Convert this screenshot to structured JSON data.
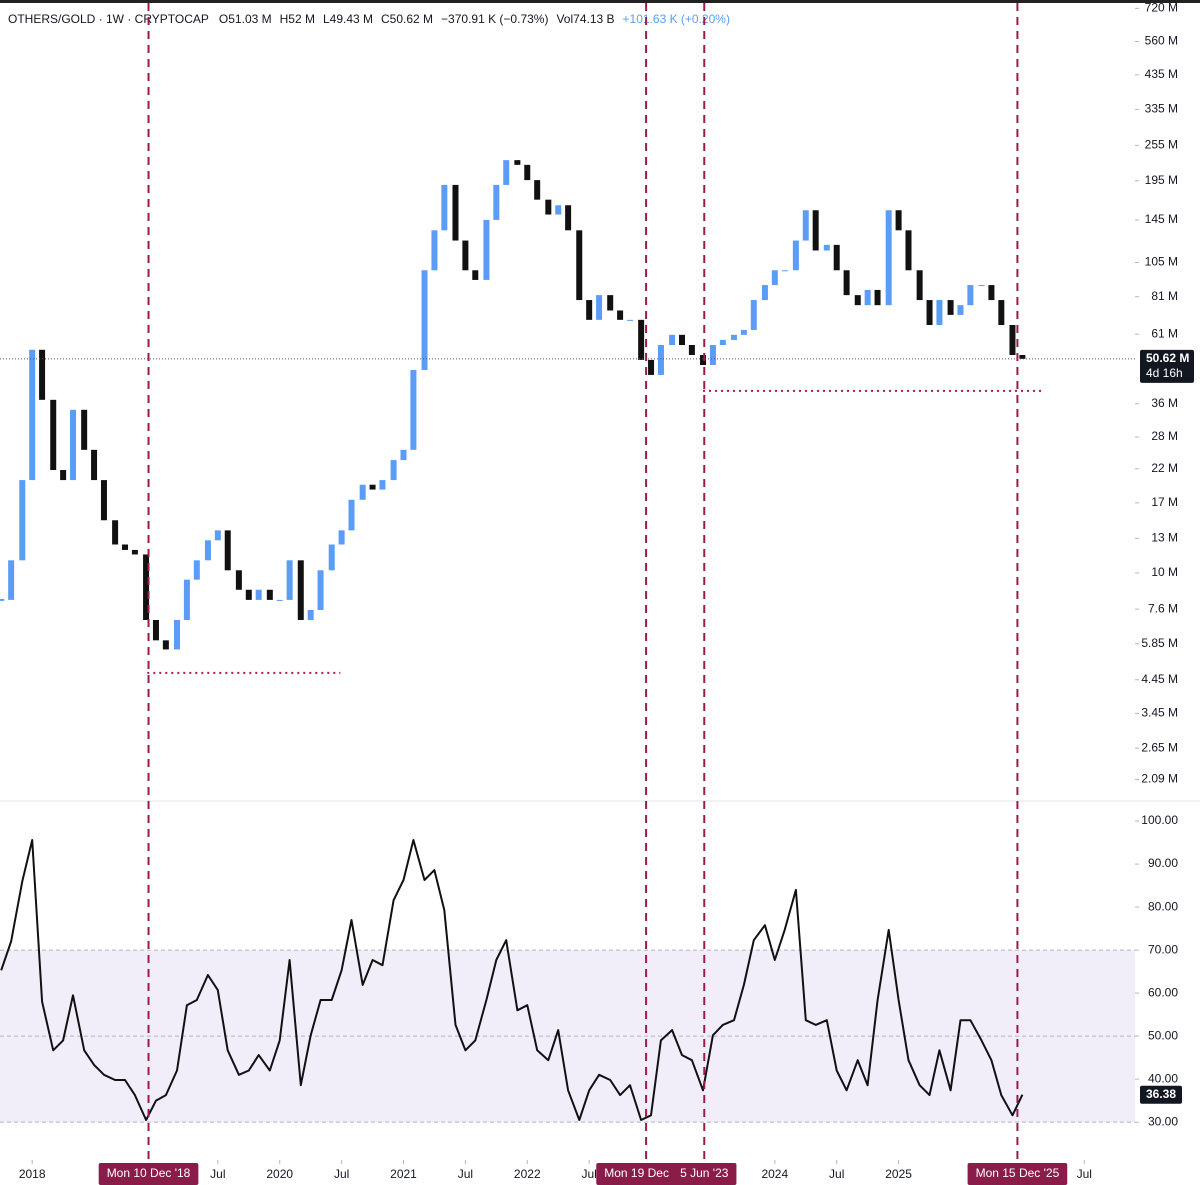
{
  "chart_data": [
    {
      "type": "candlestick",
      "header": [
        "OTHERS/GOLD · 1W · CRYPTOCAP",
        "O51.03 M",
        "H52 M",
        "L49.43 M",
        "C50.62 M",
        "−370.91 K (−0.73%)",
        "Vol74.13 B",
        "+101.63 K (+0.20%)"
      ],
      "color_up": "#5b9cf6",
      "color_down": "#111111",
      "log_scale": true,
      "xlim": [
        2017.74,
        2026.91
      ],
      "ylim": [
        1.79,
        767
      ],
      "yticks": [
        {
          "value": 720,
          "label": "720 M"
        },
        {
          "value": 560,
          "label": "560 M"
        },
        {
          "value": 435,
          "label": "435 M"
        },
        {
          "value": 335,
          "label": "335 M"
        },
        {
          "value": 255,
          "label": "255 M"
        },
        {
          "value": 195,
          "label": "195 M"
        },
        {
          "value": 145,
          "label": "145 M"
        },
        {
          "value": 105,
          "label": "105 M"
        },
        {
          "value": 81,
          "label": "81 M"
        },
        {
          "value": 61,
          "label": "61 M"
        },
        {
          "value": 36,
          "label": "36 M"
        },
        {
          "value": 28,
          "label": "28 M"
        },
        {
          "value": 22,
          "label": "22 M"
        },
        {
          "value": 17,
          "label": "17 M"
        },
        {
          "value": 13,
          "label": "13 M"
        },
        {
          "value": 10,
          "label": "10 M"
        },
        {
          "value": 7.6,
          "label": "7.6 M"
        },
        {
          "value": 5.85,
          "label": "5.85 M"
        },
        {
          "value": 4.45,
          "label": "4.45 M"
        },
        {
          "value": 3.45,
          "label": "3.45 M"
        },
        {
          "value": 2.65,
          "label": "2.65 M"
        },
        {
          "value": 2.09,
          "label": "2.09 M"
        }
      ],
      "x": [
        2017.75,
        2017.83,
        2017.92,
        2018,
        2018.08,
        2018.17,
        2018.25,
        2018.33,
        2018.42,
        2018.5,
        2018.58,
        2018.67,
        2018.75,
        2018.83,
        2018.92,
        2019,
        2019.08,
        2019.17,
        2019.25,
        2019.33,
        2019.42,
        2019.5,
        2019.58,
        2019.67,
        2019.75,
        2019.83,
        2019.92,
        2020,
        2020.08,
        2020.17,
        2020.25,
        2020.33,
        2020.42,
        2020.5,
        2020.58,
        2020.67,
        2020.75,
        2020.83,
        2020.92,
        2021,
        2021.08,
        2021.17,
        2021.25,
        2021.33,
        2021.42,
        2021.5,
        2021.58,
        2021.67,
        2021.75,
        2021.83,
        2021.92,
        2022,
        2022.08,
        2022.17,
        2022.25,
        2022.33,
        2022.42,
        2022.5,
        2022.58,
        2022.67,
        2022.75,
        2022.83,
        2022.92,
        2023,
        2023.08,
        2023.17,
        2023.25,
        2023.33,
        2023.42,
        2023.5,
        2023.58,
        2023.67,
        2023.75,
        2023.83,
        2023.92,
        2024,
        2024.08,
        2024.17,
        2024.25,
        2024.33,
        2024.42,
        2024.5,
        2024.58,
        2024.67,
        2024.75,
        2024.83,
        2024.92,
        2025,
        2025.08,
        2025.17,
        2025.25,
        2025.33,
        2025.42,
        2025.5,
        2025.58,
        2025.67,
        2025.75,
        2025.83,
        2025.92,
        2026
      ],
      "values": [
        8.15,
        11.0,
        20.2,
        54.2,
        37.1,
        21.8,
        20.2,
        34.4,
        25.4,
        20.2,
        14.9,
        12.4,
        11.9,
        11.5,
        7.0,
        6.0,
        5.6,
        7.0,
        9.5,
        11.0,
        12.8,
        13.8,
        10.2,
        8.8,
        8.15,
        8.8,
        8.15,
        8.15,
        11.0,
        7.0,
        7.55,
        10.2,
        12.4,
        13.8,
        17.4,
        19.5,
        18.8,
        20.2,
        23.5,
        25.4,
        46.5,
        99,
        134,
        189,
        124,
        99,
        92,
        145,
        189,
        228,
        220,
        196,
        169,
        151,
        162,
        134,
        79,
        68,
        82,
        73,
        68,
        68,
        50.2,
        44.8,
        56.2,
        60.7,
        56.2,
        52.1,
        48.3,
        56.2,
        58.4,
        60.7,
        63,
        79,
        88.5,
        99,
        99,
        124,
        156,
        115,
        120,
        99,
        82,
        76,
        85.3,
        76,
        156,
        134,
        99,
        79,
        65.4,
        79,
        70.6,
        76,
        88.5,
        88.5,
        79,
        65.4,
        52.1,
        50.62
      ],
      "last_price": {
        "value": 50.62,
        "label": "50.62 M"
      },
      "countdown": "4d 16h",
      "support_lines": [
        {
          "x": [
            2018.93,
            2020.49
          ],
          "value": 4.69
        },
        {
          "x": [
            2023.42,
            2026.17
          ],
          "value": 39.7
        }
      ],
      "markers": [
        {
          "x": 2018.94,
          "label": "Mon 10 Dec '18"
        },
        {
          "x": 2022.96,
          "label": "Mon 19 Dec '22"
        },
        {
          "x": 2023.43,
          "label": "5 Jun '23"
        },
        {
          "x": 2025.96,
          "label": "Mon 15 Dec '25"
        }
      ]
    },
    {
      "type": "line",
      "color": "#111111",
      "xlim": [
        2017.74,
        2026.91
      ],
      "xticks": [
        2018,
        {
          "value": 2019.5,
          "label": "Jul"
        },
        2020,
        {
          "value": 2020.5,
          "label": "Jul"
        },
        2021,
        {
          "value": 2021.5,
          "label": "Jul"
        },
        2022,
        {
          "value": 2022.5,
          "label": "Jul"
        },
        2024,
        {
          "value": 2024.5,
          "label": "Jul"
        },
        2025,
        {
          "value": 2026.5,
          "label": "Jul"
        }
      ],
      "ylim": [
        21.2,
        104.2
      ],
      "yticks": [
        {
          "value": 100,
          "label": "100.00"
        },
        {
          "value": 90,
          "label": "90.00"
        },
        {
          "value": 80,
          "label": "80.00"
        },
        {
          "value": 70,
          "label": "70.00"
        },
        {
          "value": 60,
          "label": "60.00"
        },
        {
          "value": 50,
          "label": "50.00"
        },
        {
          "value": 40,
          "label": "40.00"
        },
        {
          "value": 30,
          "label": "30.00"
        }
      ],
      "band": [
        30,
        70
      ],
      "midline": 50,
      "x": [
        2017.75,
        2017.83,
        2017.92,
        2018,
        2018.08,
        2018.17,
        2018.25,
        2018.33,
        2018.42,
        2018.5,
        2018.58,
        2018.67,
        2018.75,
        2018.83,
        2018.92,
        2019,
        2019.08,
        2019.17,
        2019.25,
        2019.33,
        2019.42,
        2019.5,
        2019.58,
        2019.67,
        2019.75,
        2019.83,
        2019.92,
        2020,
        2020.08,
        2020.17,
        2020.25,
        2020.33,
        2020.42,
        2020.5,
        2020.58,
        2020.67,
        2020.75,
        2020.83,
        2020.92,
        2021,
        2021.08,
        2021.17,
        2021.25,
        2021.33,
        2021.42,
        2021.5,
        2021.58,
        2021.67,
        2021.75,
        2021.83,
        2021.92,
        2022,
        2022.08,
        2022.17,
        2022.25,
        2022.33,
        2022.42,
        2022.5,
        2022.58,
        2022.67,
        2022.75,
        2022.83,
        2022.92,
        2023,
        2023.08,
        2023.17,
        2023.25,
        2023.33,
        2023.42,
        2023.5,
        2023.58,
        2023.67,
        2023.75,
        2023.83,
        2023.92,
        2024,
        2024.08,
        2024.17,
        2024.25,
        2024.33,
        2024.42,
        2024.5,
        2024.58,
        2024.67,
        2024.75,
        2024.83,
        2024.92,
        2025,
        2025.08,
        2025.17,
        2025.25,
        2025.33,
        2025.42,
        2025.5,
        2025.58,
        2025.67,
        2025.75,
        2025.83,
        2025.92,
        2026
      ],
      "values": [
        65.3,
        72,
        86,
        95.6,
        58,
        46.7,
        49,
        59.5,
        46.7,
        43.3,
        41,
        39.8,
        39.8,
        36.3,
        30.5,
        35,
        36.3,
        42,
        57.2,
        58.4,
        64.2,
        60.7,
        46.7,
        41,
        42,
        45.6,
        42,
        49,
        67.7,
        38.6,
        50.2,
        58.4,
        58.4,
        65.3,
        77,
        61.9,
        67.7,
        66.5,
        81.6,
        86.3,
        95.6,
        86.3,
        88.6,
        79.3,
        52.6,
        46.7,
        49,
        58.4,
        67.7,
        72.3,
        56,
        57.2,
        46.7,
        44.4,
        51.4,
        37.4,
        30.5,
        37.4,
        41,
        39.8,
        36.3,
        38.6,
        30.5,
        31.6,
        49,
        51.4,
        45.6,
        44.4,
        37.4,
        50.2,
        52.6,
        53.7,
        61.9,
        72.3,
        75.8,
        67.7,
        74.7,
        84,
        53.7,
        52.6,
        53.7,
        42,
        37.4,
        44.4,
        38.6,
        58.4,
        74.7,
        58.4,
        44.4,
        38.6,
        36.3,
        46.7,
        37.4,
        53.7,
        53.7,
        49,
        44.4,
        36.3,
        31.6,
        36.38
      ]
    }
  ]
}
